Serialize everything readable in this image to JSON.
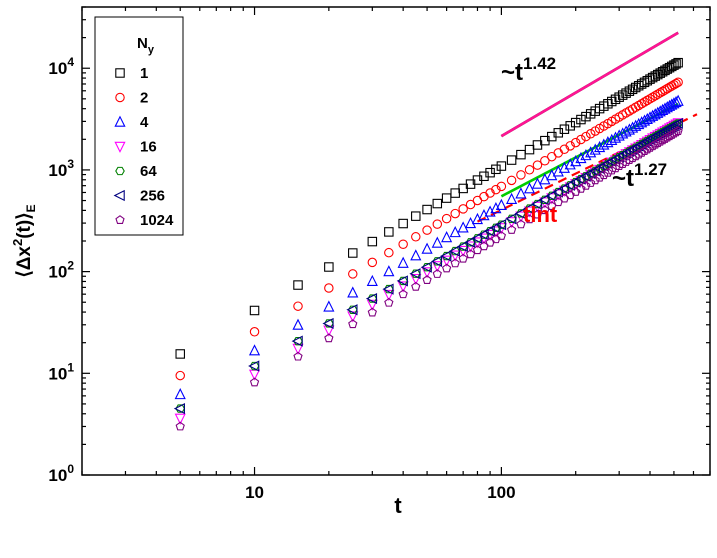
{
  "chart_data": {
    "type": "scatter",
    "xscale": "log",
    "yscale": "log",
    "xlim": [
      2,
      700
    ],
    "ylim": [
      1,
      40000
    ],
    "xlabel": "t",
    "ylabel": "⟨Δx²(t)⟩E",
    "x_ticks": [
      {
        "value": 10,
        "label": "10"
      },
      {
        "value": 100,
        "label": "100"
      }
    ],
    "y_ticks": [
      {
        "value": 1,
        "base": "10",
        "exp": "0"
      },
      {
        "value": 10,
        "base": "10",
        "exp": "1"
      },
      {
        "value": 100,
        "base": "10",
        "exp": "2"
      },
      {
        "value": 1000,
        "base": "10",
        "exp": "3"
      },
      {
        "value": 10000,
        "base": "10",
        "exp": "4"
      }
    ],
    "legend": {
      "title": "Ny",
      "position": "top-left"
    },
    "series": [
      {
        "name": "1",
        "marker": "square",
        "color": "#000000",
        "a": 15.5,
        "b": 1.42
      },
      {
        "name": "2",
        "marker": "circle",
        "color": "#ff0000",
        "a": 9.5,
        "b": 1.43
      },
      {
        "name": "4",
        "marker": "triangle-up",
        "color": "#0000ff",
        "a": 6.2,
        "b": 1.43
      },
      {
        "name": "16",
        "marker": "triangle-down",
        "color": "#ff00ff",
        "a": 3.6,
        "b": 1.44
      },
      {
        "name": "64",
        "marker": "hexagon",
        "color": "#008000",
        "a": 4.5,
        "b": 1.39
      },
      {
        "name": "256",
        "marker": "triangle-left",
        "color": "#000080",
        "a": 4.5,
        "b": 1.39
      },
      {
        "name": "1024",
        "marker": "pentagon",
        "color": "#800080",
        "a": 3.0,
        "b": 1.44
      }
    ],
    "t_values": [
      5,
      10,
      15,
      20,
      25,
      30,
      35,
      40,
      45,
      50,
      55,
      60,
      65,
      70,
      75,
      80,
      85,
      90,
      95,
      100,
      110,
      120,
      130,
      140,
      150,
      160,
      170,
      180,
      190,
      200,
      210,
      220,
      230,
      240,
      250,
      260,
      270,
      280,
      290,
      300,
      310,
      320,
      330,
      340,
      350,
      360,
      370,
      380,
      390,
      400,
      410,
      420,
      430,
      440,
      450,
      460,
      470,
      480,
      490,
      500,
      510,
      520
    ],
    "fits": [
      {
        "label_base": "~t",
        "label_exp": "1.42",
        "exponent": 1.42,
        "color": "#000000",
        "dash": false,
        "x_range": [
          100,
          520
        ],
        "y_at_start": 2150
      },
      {
        "label_base": "~t",
        "label_exp": "1.42",
        "exponent": 1.42,
        "color": "#ff1493",
        "dash": false,
        "x_range": [
          100,
          520
        ],
        "y_at_start": 2150
      },
      {
        "label_base": "~t",
        "label_exp": "1.27",
        "exponent": 1.27,
        "color": "#00cc00",
        "dash": false,
        "x_range": [
          100,
          520
        ],
        "y_at_start": 550
      },
      {
        "label_base": "tlnt",
        "label_exp": "",
        "exponent": null,
        "color": "#ff0000",
        "dash": true,
        "x_range": [
          80,
          620
        ],
        "y_at_start": 310
      }
    ],
    "annotations": {
      "fit_upper": {
        "base": "~t",
        "exp": "1.42",
        "color": "#000000"
      },
      "fit_lower": {
        "base": "~t",
        "exp": "1.27",
        "color": "#000000"
      },
      "tlnt": {
        "text": "tlnt",
        "color": "#ff0000"
      }
    }
  }
}
